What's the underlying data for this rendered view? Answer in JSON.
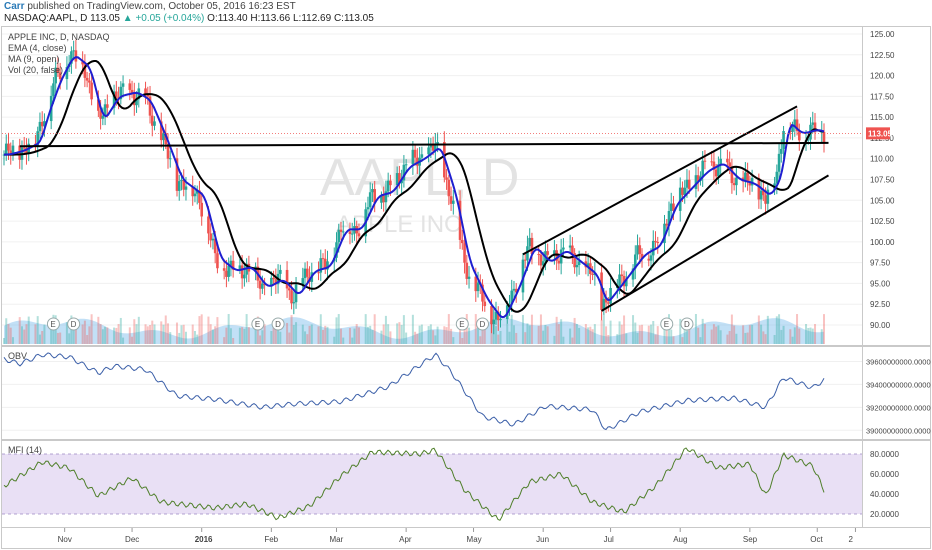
{
  "header": {
    "author": "Carr",
    "published": "published on TradingView.com, October 05, 2016 16:23 EST",
    "symbol": "NASDAQ:AAPL, D",
    "last": "113.05",
    "change": "▲ +0.05 (+0.04%)",
    "open": "O:113.40",
    "high": "H:113.66",
    "low": "L:112.69",
    "close": "C:113.05"
  },
  "legend": {
    "title": "APPLE INC, D, NASDAQ",
    "ema": "EMA (4, close)",
    "ma": "MA (9, open)",
    "vol": "Vol (20, false)"
  },
  "watermark": {
    "symbol": "AAPL, D",
    "name": "APPLE INC"
  },
  "obv_label": "OBV",
  "mfi_label": "MFI (14)",
  "last_price_badge": "113.05",
  "colors": {
    "up": "#26a69a",
    "down": "#ef5350",
    "ema": "#1f1fd0",
    "ma": "#000000",
    "mfi_band": "#e9e0f5",
    "volume": "#8fc6ee"
  },
  "earnings_marker": "E",
  "dividend_marker": "D",
  "chart_data": [
    {
      "type": "candlestick",
      "title": "APPLE INC, D, NASDAQ",
      "x_ticks": [
        "Nov",
        "Dec",
        "2016",
        "Feb",
        "Mar",
        "Apr",
        "May",
        "Jun",
        "Jul",
        "Aug",
        "Sep",
        "Oct",
        "2"
      ],
      "y_ticks": [
        "125.00",
        "122.50",
        "120.00",
        "117.50",
        "115.00",
        "112.50",
        "110.00",
        "107.50",
        "105.00",
        "102.50",
        "100.00",
        "97.50",
        "95.00",
        "92.50",
        "90.00"
      ],
      "ylim": [
        89,
        126.5
      ],
      "price_path": [
        [
          "2015-10-05",
          110.5
        ],
        [
          "2015-10-12",
          111.0
        ],
        [
          "2015-10-19",
          112.0
        ],
        [
          "2015-10-22",
          115.0
        ],
        [
          "2015-10-28",
          119.5
        ],
        [
          "2015-11-03",
          122.5
        ],
        [
          "2015-11-10",
          121.0
        ],
        [
          "2015-11-16",
          114.5
        ],
        [
          "2015-11-23",
          117.5
        ],
        [
          "2015-12-01",
          118.0
        ],
        [
          "2015-12-07",
          117.0
        ],
        [
          "2015-12-14",
          112.5
        ],
        [
          "2015-12-21",
          107.5
        ],
        [
          "2015-12-31",
          105.5
        ],
        [
          "2016-01-07",
          98.0
        ],
        [
          "2016-01-14",
          96.5
        ],
        [
          "2016-01-21",
          97.0
        ],
        [
          "2016-01-28",
          94.5
        ],
        [
          "2016-02-04",
          95.5
        ],
        [
          "2016-02-11",
          93.5
        ],
        [
          "2016-02-18",
          96.5
        ],
        [
          "2016-02-25",
          97.0
        ],
        [
          "2016-03-03",
          101.5
        ],
        [
          "2016-03-10",
          101.5
        ],
        [
          "2016-03-17",
          105.5
        ],
        [
          "2016-03-24",
          106.0
        ],
        [
          "2016-03-31",
          109.0
        ],
        [
          "2016-04-07",
          110.0
        ],
        [
          "2016-04-14",
          111.5
        ],
        [
          "2016-04-21",
          105.5
        ],
        [
          "2016-04-27",
          97.5
        ],
        [
          "2016-05-05",
          93.0
        ],
        [
          "2016-05-12",
          90.5
        ],
        [
          "2016-05-19",
          94.5
        ],
        [
          "2016-05-26",
          99.5
        ],
        [
          "2016-06-02",
          97.5
        ],
        [
          "2016-06-09",
          99.0
        ],
        [
          "2016-06-16",
          97.5
        ],
        [
          "2016-06-23",
          96.0
        ],
        [
          "2016-06-27",
          92.5
        ],
        [
          "2016-07-07",
          96.0
        ],
        [
          "2016-07-14",
          98.5
        ],
        [
          "2016-07-21",
          99.5
        ],
        [
          "2016-07-28",
          104.5
        ],
        [
          "2016-08-04",
          106.5
        ],
        [
          "2016-08-11",
          108.5
        ],
        [
          "2016-08-18",
          109.5
        ],
        [
          "2016-08-25",
          107.5
        ],
        [
          "2016-09-01",
          107.0
        ],
        [
          "2016-09-08",
          105.5
        ],
        [
          "2016-09-13",
          108.0
        ],
        [
          "2016-09-16",
          114.5
        ],
        [
          "2016-09-22",
          113.0
        ],
        [
          "2016-09-29",
          113.5
        ],
        [
          "2016-10-04",
          113.05
        ]
      ],
      "resistance": [
        [
          "2015-10-12",
          111.5
        ],
        [
          "2016-10-06",
          111.9
        ]
      ],
      "channel_upper": [
        [
          "2016-05-23",
          98.5
        ],
        [
          "2016-09-22",
          116.3
        ]
      ],
      "channel_lower": [
        [
          "2016-06-27",
          91.7
        ],
        [
          "2016-10-06",
          108.0
        ]
      ],
      "earnings_dates": [
        "2015-10-27",
        "2016-01-26",
        "2016-04-26",
        "2016-07-26"
      ],
      "dividend_dates": [
        "2015-11-05",
        "2016-02-04",
        "2016-05-05",
        "2016-08-04"
      ]
    },
    {
      "type": "line",
      "name": "OBV",
      "y_ticks": [
        "39600000000.0000",
        "39400000000.0000",
        "39200000000.0000",
        "39000000000.0000"
      ],
      "ylim": [
        38950000000,
        39700000000
      ],
      "points": [
        [
          "2015-10-05",
          39620000000
        ],
        [
          "2015-10-12",
          39580000000
        ],
        [
          "2015-10-22",
          39660000000
        ],
        [
          "2015-11-03",
          39640000000
        ],
        [
          "2015-11-16",
          39500000000
        ],
        [
          "2015-11-23",
          39560000000
        ],
        [
          "2015-12-07",
          39530000000
        ],
        [
          "2015-12-21",
          39300000000
        ],
        [
          "2016-01-07",
          39270000000
        ],
        [
          "2016-01-28",
          39200000000
        ],
        [
          "2016-02-11",
          39230000000
        ],
        [
          "2016-03-03",
          39250000000
        ],
        [
          "2016-03-24",
          39380000000
        ],
        [
          "2016-04-14",
          39660000000
        ],
        [
          "2016-04-21",
          39510000000
        ],
        [
          "2016-05-05",
          39120000000
        ],
        [
          "2016-05-19",
          39050000000
        ],
        [
          "2016-06-02",
          39210000000
        ],
        [
          "2016-06-23",
          39180000000
        ],
        [
          "2016-06-29",
          39000000000
        ],
        [
          "2016-07-14",
          39160000000
        ],
        [
          "2016-08-04",
          39260000000
        ],
        [
          "2016-08-25",
          39280000000
        ],
        [
          "2016-09-08",
          39200000000
        ],
        [
          "2016-09-16",
          39460000000
        ],
        [
          "2016-09-29",
          39370000000
        ],
        [
          "2016-10-04",
          39440000000
        ]
      ]
    },
    {
      "type": "line",
      "name": "MFI (14)",
      "y_ticks": [
        "80.0000",
        "60.0000",
        "40.0000",
        "20.0000"
      ],
      "ylim": [
        8,
        92
      ],
      "band": [
        20,
        80
      ],
      "points": [
        [
          "2015-10-05",
          48
        ],
        [
          "2015-10-22",
          72
        ],
        [
          "2015-11-03",
          66
        ],
        [
          "2015-11-16",
          38
        ],
        [
          "2015-12-01",
          56
        ],
        [
          "2015-12-14",
          32
        ],
        [
          "2016-01-07",
          26
        ],
        [
          "2016-01-21",
          30
        ],
        [
          "2016-02-04",
          16
        ],
        [
          "2016-02-18",
          28
        ],
        [
          "2016-03-03",
          58
        ],
        [
          "2016-03-17",
          82
        ],
        [
          "2016-04-07",
          80
        ],
        [
          "2016-04-14",
          84
        ],
        [
          "2016-04-27",
          44
        ],
        [
          "2016-05-12",
          14
        ],
        [
          "2016-05-26",
          52
        ],
        [
          "2016-06-09",
          60
        ],
        [
          "2016-06-23",
          32
        ],
        [
          "2016-07-07",
          22
        ],
        [
          "2016-07-21",
          48
        ],
        [
          "2016-08-04",
          86
        ],
        [
          "2016-08-18",
          66
        ],
        [
          "2016-09-01",
          70
        ],
        [
          "2016-09-08",
          38
        ],
        [
          "2016-09-16",
          79
        ],
        [
          "2016-09-29",
          68
        ],
        [
          "2016-10-04",
          44
        ]
      ]
    }
  ]
}
